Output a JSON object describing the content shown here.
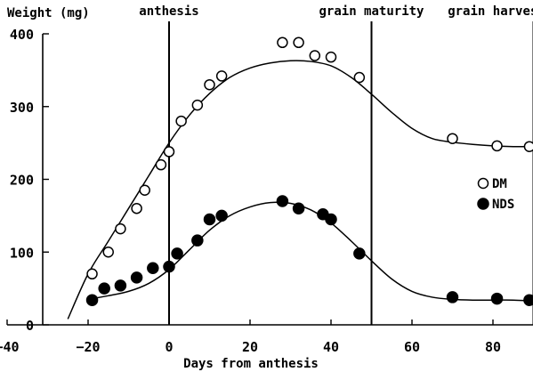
{
  "chart_data": {
    "type": "scatter",
    "title": "",
    "xlabel": "Days from anthesis",
    "ylabel": "Weight (mg)",
    "xlim": [
      -40,
      92
    ],
    "ylim": [
      0,
      400
    ],
    "xticks": [
      -40,
      -20,
      0,
      20,
      40,
      60,
      80
    ],
    "yticks": [
      0,
      100,
      200,
      300,
      400
    ],
    "legend_position": "right",
    "events": [
      {
        "label": "anthesis",
        "x": 0
      },
      {
        "label": "grain maturity",
        "x": 50
      },
      {
        "label": "grain harvest",
        "x": 90
      }
    ],
    "series": [
      {
        "name": "DM",
        "marker": "open-circle",
        "points": [
          [
            -19,
            70
          ],
          [
            -15,
            100
          ],
          [
            -12,
            132
          ],
          [
            -8,
            160
          ],
          [
            -6,
            185
          ],
          [
            -2,
            220
          ],
          [
            0,
            238
          ],
          [
            3,
            280
          ],
          [
            7,
            302
          ],
          [
            10,
            330
          ],
          [
            13,
            342
          ],
          [
            28,
            388
          ],
          [
            32,
            388
          ],
          [
            36,
            370
          ],
          [
            40,
            368
          ],
          [
            47,
            340
          ],
          [
            70,
            256
          ],
          [
            81,
            246
          ],
          [
            89,
            245
          ]
        ],
        "fit": [
          [
            -25,
            8
          ],
          [
            -20,
            70
          ],
          [
            -15,
            115
          ],
          [
            -10,
            160
          ],
          [
            -5,
            205
          ],
          [
            0,
            250
          ],
          [
            5,
            288
          ],
          [
            10,
            318
          ],
          [
            15,
            340
          ],
          [
            20,
            353
          ],
          [
            25,
            360
          ],
          [
            30,
            363
          ],
          [
            35,
            362
          ],
          [
            40,
            356
          ],
          [
            45,
            340
          ],
          [
            50,
            317
          ],
          [
            55,
            292
          ],
          [
            60,
            270
          ],
          [
            65,
            256
          ],
          [
            70,
            251
          ],
          [
            75,
            248
          ],
          [
            80,
            246
          ],
          [
            85,
            245
          ],
          [
            89,
            245
          ]
        ]
      },
      {
        "name": "NDS",
        "marker": "filled-circle",
        "points": [
          [
            -19,
            34
          ],
          [
            -16,
            50
          ],
          [
            -12,
            54
          ],
          [
            -8,
            65
          ],
          [
            -4,
            78
          ],
          [
            0,
            80
          ],
          [
            2,
            98
          ],
          [
            7,
            116
          ],
          [
            10,
            145
          ],
          [
            13,
            150
          ],
          [
            28,
            170
          ],
          [
            32,
            160
          ],
          [
            38,
            152
          ],
          [
            40,
            145
          ],
          [
            47,
            98
          ],
          [
            70,
            38
          ],
          [
            81,
            36
          ],
          [
            89,
            34
          ]
        ],
        "fit": [
          [
            -19,
            36
          ],
          [
            -15,
            40
          ],
          [
            -10,
            46
          ],
          [
            -5,
            57
          ],
          [
            0,
            76
          ],
          [
            5,
            103
          ],
          [
            10,
            130
          ],
          [
            15,
            150
          ],
          [
            20,
            162
          ],
          [
            25,
            168
          ],
          [
            30,
            167
          ],
          [
            35,
            158
          ],
          [
            40,
            140
          ],
          [
            45,
            115
          ],
          [
            50,
            88
          ],
          [
            55,
            63
          ],
          [
            60,
            46
          ],
          [
            65,
            38
          ],
          [
            70,
            35
          ],
          [
            75,
            34
          ],
          [
            80,
            34
          ],
          [
            85,
            34
          ],
          [
            89,
            33
          ]
        ]
      }
    ]
  }
}
